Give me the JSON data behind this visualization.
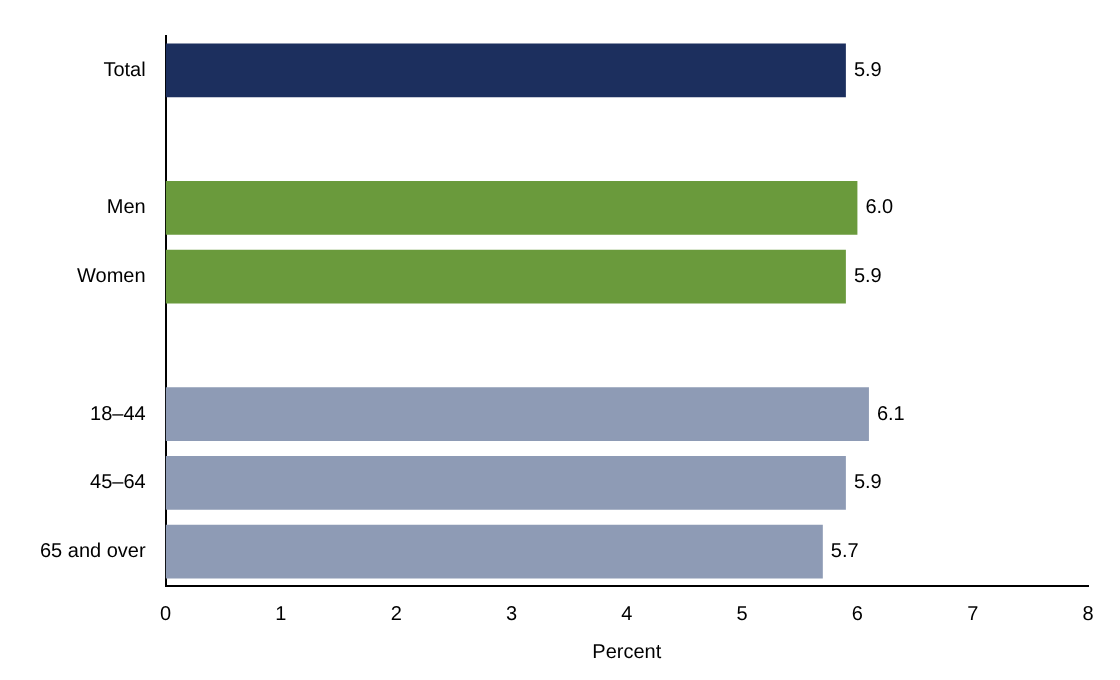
{
  "chart_data": {
    "type": "bar",
    "orientation": "horizontal",
    "xlabel": "Percent",
    "categories": [
      "Total",
      null,
      "Men",
      "Women",
      null,
      "18–44",
      "45–64",
      "65 and over"
    ],
    "values": [
      5.9,
      null,
      6.0,
      5.9,
      null,
      6.1,
      5.9,
      5.7
    ],
    "colors": [
      "#1c2f5e",
      "#ffffff",
      "#6a9a3c",
      "#6a9a3c",
      "#ffffff",
      "#8e9bb5",
      "#8e9bb5",
      "#8e9bb5"
    ],
    "value_labels": [
      "5.9",
      null,
      "6.0",
      "5.9",
      null,
      "6.1",
      "5.9",
      "5.7"
    ],
    "xlim": [
      0,
      8
    ],
    "xticks": [
      0,
      1,
      2,
      3,
      4,
      5,
      6,
      7,
      8
    ],
    "grid": false,
    "legend": false
  }
}
